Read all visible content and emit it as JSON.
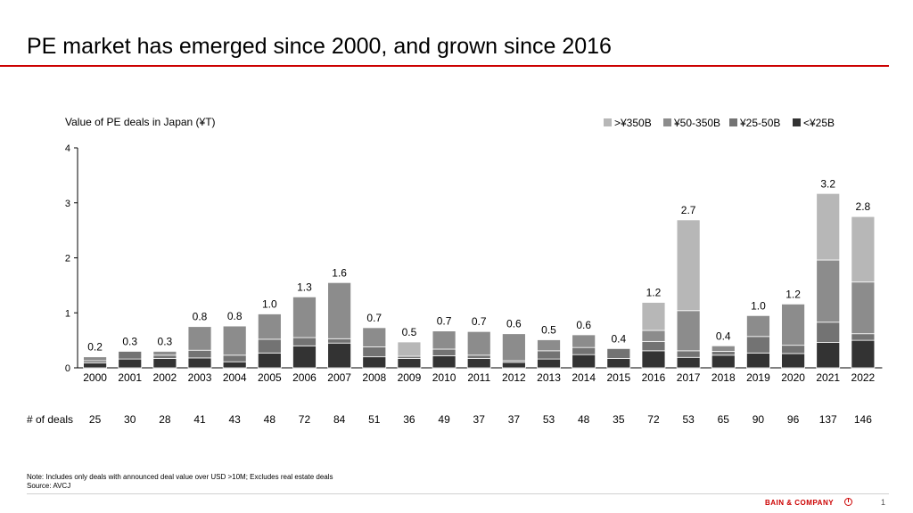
{
  "title": "PE market has emerged since 2000, and grown since 2016",
  "notes": {
    "line1": "Note: Includes only deals with announced deal value over USD  >10M; Excludes real estate deals",
    "line2": "Source: AVCJ"
  },
  "footer": {
    "brand": "BAIN & COMPANY",
    "page_number": "1"
  },
  "chart_data": {
    "type": "bar",
    "stacked": true,
    "title": "Value of PE deals in Japan (¥T)",
    "categories": [
      "2000",
      "2001",
      "2002",
      "2003",
      "2004",
      "2005",
      "2006",
      "2007",
      "2008",
      "2009",
      "2010",
      "2011",
      "2012",
      "2013",
      "2014",
      "2015",
      "2016",
      "2017",
      "2018",
      "2019",
      "2020",
      "2021",
      "2022"
    ],
    "series": [
      {
        "name": "<¥25B",
        "color": "#333333",
        "values": [
          0.09,
          0.16,
          0.17,
          0.18,
          0.11,
          0.27,
          0.4,
          0.45,
          0.2,
          0.17,
          0.22,
          0.17,
          0.1,
          0.16,
          0.24,
          0.17,
          0.31,
          0.19,
          0.23,
          0.27,
          0.26,
          0.46,
          0.5
        ]
      },
      {
        "name": "¥25-50B",
        "color": "#737373",
        "values": [
          0.04,
          0.14,
          0.06,
          0.14,
          0.12,
          0.25,
          0.15,
          0.08,
          0.18,
          0.04,
          0.12,
          0.06,
          0.03,
          0.15,
          0.13,
          0.18,
          0.17,
          0.12,
          0.07,
          0.3,
          0.15,
          0.37,
          0.12
        ]
      },
      {
        "name": "¥50-350B",
        "color": "#8c8c8c",
        "values": [
          0.07,
          0.0,
          0.07,
          0.43,
          0.53,
          0.46,
          0.74,
          1.02,
          0.35,
          0.0,
          0.33,
          0.43,
          0.49,
          0.2,
          0.23,
          0.0,
          0.2,
          0.73,
          0.1,
          0.38,
          0.75,
          1.13,
          0.94
        ]
      },
      {
        "name": ">¥350B",
        "color": "#b7b7b7",
        "values": [
          0.0,
          0.0,
          0.0,
          0.0,
          0.0,
          0.0,
          0.0,
          0.0,
          0.0,
          0.26,
          0.0,
          0.0,
          0.0,
          0.0,
          0.0,
          0.0,
          0.51,
          1.65,
          0.0,
          0.0,
          0.0,
          1.21,
          1.19
        ]
      }
    ],
    "total_labels": [
      "0.2",
      "0.3",
      "0.3",
      "0.8",
      "0.8",
      "1.0",
      "1.3",
      "1.6",
      "0.7",
      "0.5",
      "0.7",
      "0.7",
      "0.6",
      "0.5",
      "0.6",
      "0.4",
      "1.2",
      "2.7",
      "0.4",
      "1.0",
      "1.2",
      "3.2",
      "2.8"
    ],
    "ylim": [
      0,
      4
    ],
    "yticks": [
      "0",
      "1",
      "2",
      "3",
      "4"
    ],
    "legend_position": "top-right",
    "deals_label": "# of deals",
    "deals": [
      "25",
      "30",
      "28",
      "41",
      "43",
      "48",
      "72",
      "84",
      "51",
      "36",
      "49",
      "37",
      "37",
      "53",
      "48",
      "35",
      "72",
      "53",
      "65",
      "90",
      "96",
      "137",
      "146"
    ]
  }
}
